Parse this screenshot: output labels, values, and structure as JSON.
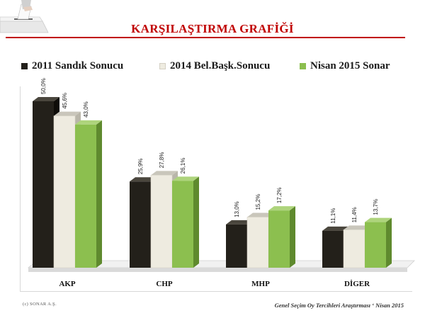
{
  "title": "KARŞILAŞTIRMA GRAFİĞİ",
  "footer": {
    "copyright": "(c) SONAR A.Ş.",
    "source": "Genel Seçim Oy Tercihleri Araştırması ‘ Nisan 2015"
  },
  "icons": {
    "corner_image": "ballot-box-icon"
  },
  "colors": {
    "title": "#c00000",
    "series_2011": "#23201a",
    "series_2014": "#eeebe0",
    "series_2015": "#8cbf4f"
  },
  "chart_data": {
    "type": "bar",
    "style": "3d-clustered",
    "categories": [
      "AKP",
      "CHP",
      "MHP",
      "DİGER"
    ],
    "series": [
      {
        "name": "2011 Sandık Sonucu",
        "color": "#23201a",
        "values": [
          50.0,
          25.9,
          13.0,
          11.1
        ],
        "labels": [
          "50,0%",
          "25,9%",
          "13,0%",
          "11,1%"
        ]
      },
      {
        "name": "2014 Bel.Başk.Sonucu",
        "color": "#eeebe0",
        "values": [
          45.6,
          27.8,
          15.2,
          11.4
        ],
        "labels": [
          "45,6%",
          "27,8%",
          "15,2%",
          "11,4%"
        ]
      },
      {
        "name": "Nisan 2015 Sonar",
        "color": "#8cbf4f",
        "values": [
          43.0,
          26.1,
          17.2,
          13.7
        ],
        "labels": [
          "43,0%",
          "26,1%",
          "17,2%",
          "13,7%"
        ]
      }
    ],
    "ylim": [
      0,
      60
    ],
    "title": "",
    "xlabel": "",
    "ylabel": "",
    "grid": false,
    "legend_position": "top"
  }
}
